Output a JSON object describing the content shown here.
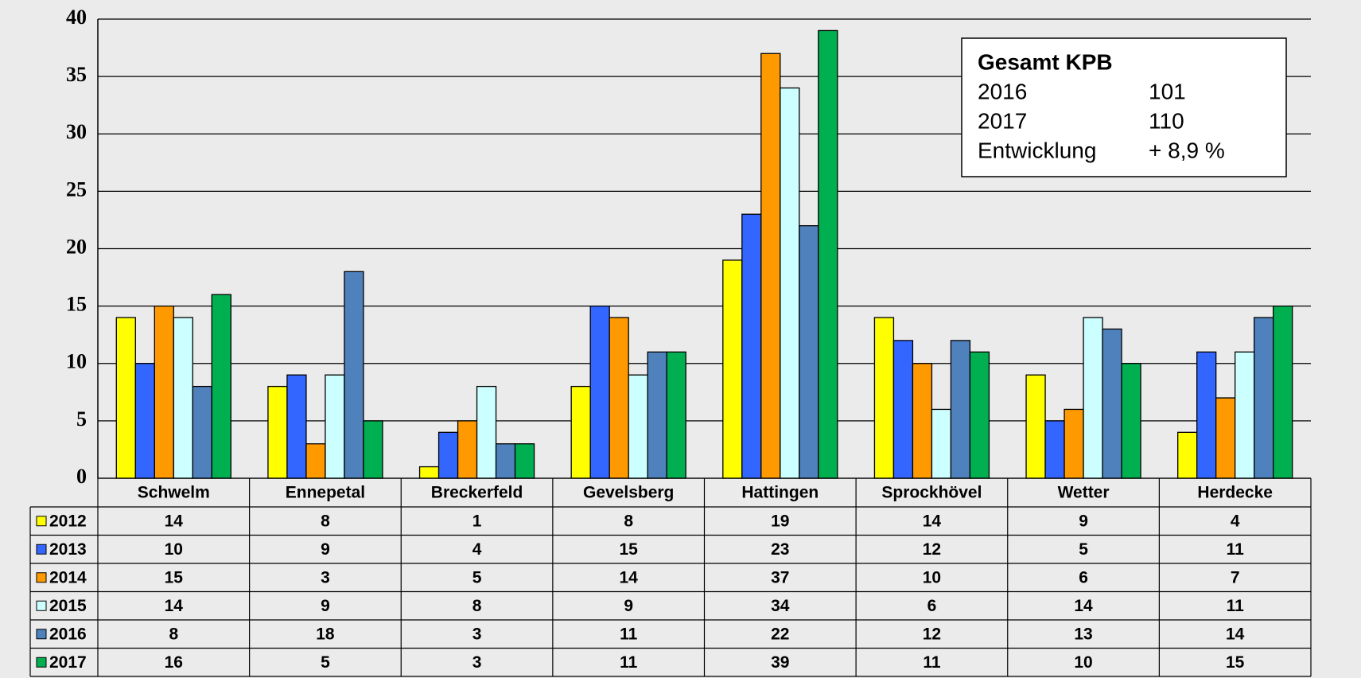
{
  "chart_data": {
    "type": "bar",
    "categories": [
      "Schwelm",
      "Ennepetal",
      "Breckerfeld",
      "Gevelsberg",
      "Hattingen",
      "Sprockhövel",
      "Wetter",
      "Herdecke"
    ],
    "series": [
      {
        "name": "2012",
        "color": "#ffff00",
        "values": [
          14,
          8,
          1,
          8,
          19,
          14,
          9,
          4
        ]
      },
      {
        "name": "2013",
        "color": "#3366ff",
        "values": [
          10,
          9,
          4,
          15,
          23,
          12,
          5,
          11
        ]
      },
      {
        "name": "2014",
        "color": "#ff9900",
        "values": [
          15,
          3,
          5,
          14,
          37,
          10,
          6,
          7
        ]
      },
      {
        "name": "2015",
        "color": "#ccffff",
        "values": [
          14,
          9,
          8,
          9,
          34,
          6,
          14,
          11
        ]
      },
      {
        "name": "2016",
        "color": "#4f81bd",
        "values": [
          8,
          18,
          3,
          11,
          22,
          12,
          13,
          14
        ]
      },
      {
        "name": "2017",
        "color": "#00b050",
        "values": [
          16,
          5,
          3,
          11,
          39,
          11,
          10,
          15
        ]
      }
    ],
    "ylim": [
      0,
      40
    ],
    "yticks": [
      0,
      5,
      10,
      15,
      20,
      25,
      30,
      35,
      40
    ],
    "grid": true,
    "summary": {
      "title": "Gesamt KPB",
      "rows": [
        [
          "2016",
          "101"
        ],
        [
          "2017",
          "110"
        ],
        [
          "Entwicklung",
          "+ 8,9 %"
        ]
      ]
    }
  }
}
